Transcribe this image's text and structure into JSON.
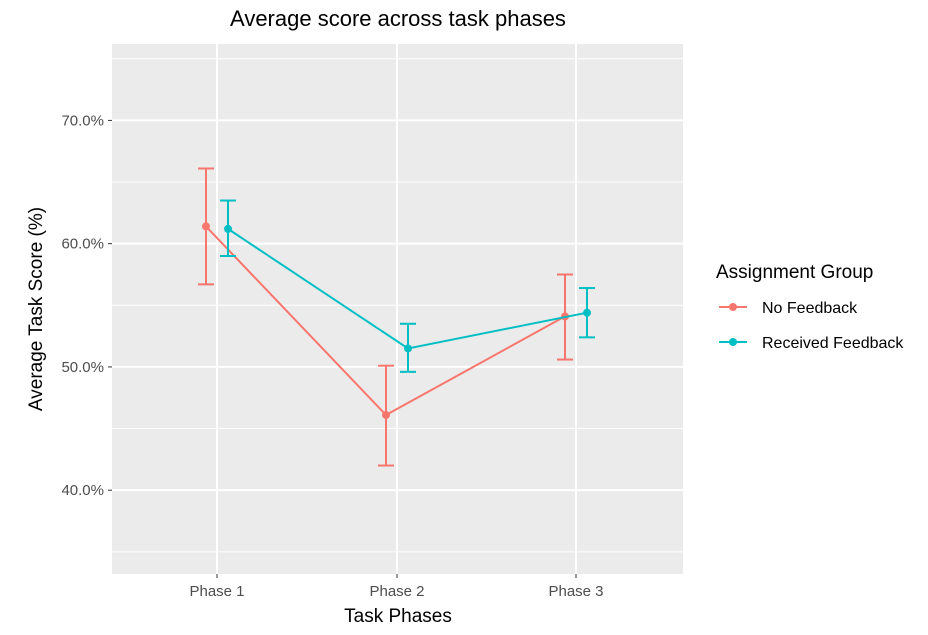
{
  "chart_data": {
    "type": "line",
    "title": "Average score across task phases",
    "xlabel": "Task Phases",
    "ylabel": "Average Task Score (%)",
    "categories": [
      "Phase 1",
      "Phase 2",
      "Phase 3"
    ],
    "ylim": [
      0.332,
      0.762
    ],
    "yticks": [
      0.4,
      0.5,
      0.6,
      0.7
    ],
    "ytick_labels": [
      "40.0%",
      "50.0%",
      "60.0%",
      "70.0%"
    ],
    "grid": true,
    "error_bars": true,
    "legend": {
      "title": "Assignment Group",
      "position": "right"
    },
    "series": [
      {
        "name": "No Feedback",
        "color": "#f8766d",
        "values": [
          0.614,
          0.461,
          0.541
        ],
        "lower": [
          0.567,
          0.42,
          0.506
        ],
        "upper": [
          0.661,
          0.501,
          0.575
        ]
      },
      {
        "name": "Received Feedback",
        "color": "#00bfc4",
        "values": [
          0.612,
          0.515,
          0.544
        ],
        "lower": [
          0.59,
          0.496,
          0.524
        ],
        "upper": [
          0.635,
          0.535,
          0.564
        ]
      }
    ]
  }
}
